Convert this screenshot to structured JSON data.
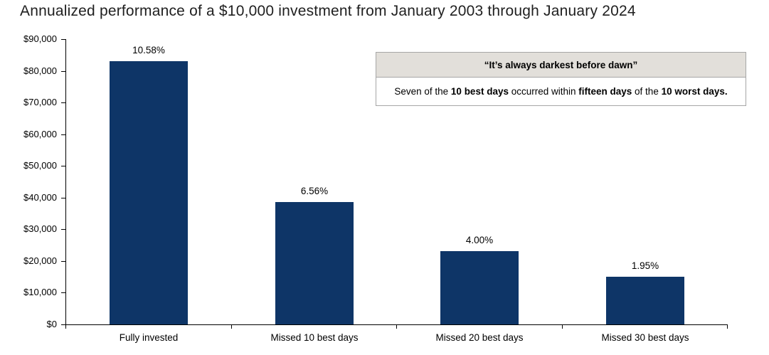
{
  "title": "Annualized performance of a $10,000 investment from January 2003 through January 2024",
  "chart_data": {
    "type": "bar",
    "title": "Annualized performance of a $10,000 investment from January 2003 through January 2024",
    "categories": [
      "Fully invested",
      "Missed 10 best days",
      "Missed 20 best days",
      "Missed 30 best days"
    ],
    "values": [
      83000,
      38600,
      23100,
      15000
    ],
    "bar_labels": [
      "10.58%",
      "6.56%",
      "4.00%",
      "1.95%"
    ],
    "annualized_returns_pct": [
      10.58,
      6.56,
      4.0,
      1.95
    ],
    "xlabel": "",
    "ylabel": "",
    "ylim": [
      0,
      90000
    ],
    "ytick_interval": 10000,
    "ytick_labels": [
      "$0",
      "$10,000",
      "$20,000",
      "$30,000",
      "$40,000",
      "$50,000",
      "$60,000",
      "$70,000",
      "$80,000",
      "$90,000"
    ],
    "grid": false,
    "legend_position": "none",
    "bar_color": "#0e3567"
  },
  "callout": {
    "header": "“It’s always darkest before dawn”",
    "body_segments": [
      {
        "text": "Seven of the ",
        "bold": false
      },
      {
        "text": "10 best days",
        "bold": true
      },
      {
        "text": " occurred within ",
        "bold": false
      },
      {
        "text": "fifteen days",
        "bold": true
      },
      {
        "text": " of the ",
        "bold": false
      },
      {
        "text": "10 worst days.",
        "bold": true
      }
    ]
  },
  "colors": {
    "bar": "#0e3567",
    "axis": "#000000",
    "title_text": "#1f1f1f",
    "label_text": "#000000",
    "callout_header_bg": "#e2dfda",
    "callout_border": "#a6a6a6",
    "background": "#ffffff"
  }
}
